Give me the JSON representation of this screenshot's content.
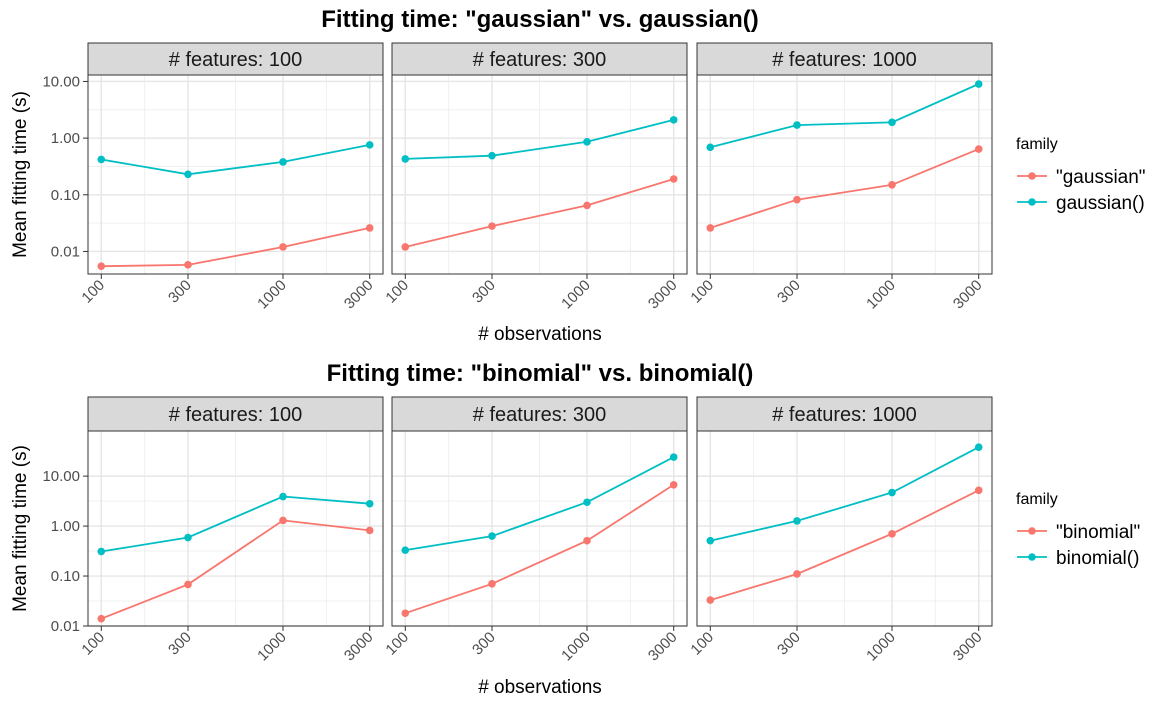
{
  "chart_data": [
    {
      "type": "line",
      "title": "Fitting time: \"gaussian\" vs. gaussian()",
      "xlabel": "# observations",
      "ylabel": "Mean fitting time (s)",
      "x": [
        100,
        300,
        1000,
        3000
      ],
      "x_tick_labels": [
        "100",
        "300",
        "1000",
        "3000"
      ],
      "x_scale": "log",
      "y_scale": "log",
      "y_ticks": [
        0.01,
        0.1,
        1,
        10
      ],
      "y_tick_labels": [
        "0.01",
        "0.10",
        "1.00",
        "10.00"
      ],
      "ylim": [
        0.004,
        13
      ],
      "grid": true,
      "legend": {
        "title": "family",
        "position": "right"
      },
      "series_colors": [
        "#F8766D",
        "#00BFC4"
      ],
      "series_labels": [
        "\"gaussian\"",
        "gaussian()"
      ],
      "panels": [
        {
          "label": "# features: 100",
          "series": [
            {
              "name": "\"gaussian\"",
              "values": [
                0.0055,
                0.0058,
                0.012,
                0.026
              ]
            },
            {
              "name": "gaussian()",
              "values": [
                0.42,
                0.23,
                0.38,
                0.76
              ]
            }
          ]
        },
        {
          "label": "# features: 300",
          "series": [
            {
              "name": "\"gaussian\"",
              "values": [
                0.012,
                0.028,
                0.065,
                0.19
              ]
            },
            {
              "name": "gaussian()",
              "values": [
                0.43,
                0.49,
                0.86,
                2.1
              ]
            }
          ]
        },
        {
          "label": "# features: 1000",
          "series": [
            {
              "name": "\"gaussian\"",
              "values": [
                0.026,
                0.082,
                0.15,
                0.64
              ]
            },
            {
              "name": "gaussian()",
              "values": [
                0.69,
                1.7,
                1.9,
                9.0
              ]
            }
          ]
        }
      ]
    },
    {
      "type": "line",
      "title": "Fitting time: \"binomial\" vs. binomial()",
      "xlabel": "# observations",
      "ylabel": "Mean fitting time (s)",
      "x": [
        100,
        300,
        1000,
        3000
      ],
      "x_tick_labels": [
        "100",
        "300",
        "1000",
        "3000"
      ],
      "x_scale": "log",
      "y_scale": "log",
      "y_ticks": [
        0.01,
        0.1,
        1,
        10
      ],
      "y_tick_labels": [
        "0.01",
        "0.10",
        "1.00",
        "10.00"
      ],
      "ylim": [
        0.01,
        80
      ],
      "grid": true,
      "legend": {
        "title": "family",
        "position": "right"
      },
      "series_colors": [
        "#F8766D",
        "#00BFC4"
      ],
      "series_labels": [
        "\"binomial\"",
        "binomial()"
      ],
      "panels": [
        {
          "label": "# features: 100",
          "series": [
            {
              "name": "\"binomial\"",
              "values": [
                0.014,
                0.068,
                1.3,
                0.82
              ]
            },
            {
              "name": "binomial()",
              "values": [
                0.31,
                0.59,
                3.9,
                2.8
              ]
            }
          ]
        },
        {
          "label": "# features: 300",
          "series": [
            {
              "name": "\"binomial\"",
              "values": [
                0.018,
                0.07,
                0.51,
                6.7
              ]
            },
            {
              "name": "binomial()",
              "values": [
                0.33,
                0.63,
                3.0,
                24
              ]
            }
          ]
        },
        {
          "label": "# features: 1000",
          "series": [
            {
              "name": "\"binomial\"",
              "values": [
                0.033,
                0.11,
                0.7,
                5.2
              ]
            },
            {
              "name": "binomial()",
              "values": [
                0.51,
                1.27,
                4.7,
                38
              ]
            }
          ]
        }
      ]
    }
  ]
}
